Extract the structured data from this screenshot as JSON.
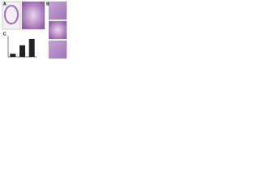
{
  "panels": [
    {
      "label": "A"
    },
    {
      "label": "B"
    },
    {
      "label": "C"
    }
  ],
  "chart_data": {
    "type": "bar",
    "categories": [
      null,
      null,
      null
    ],
    "values": [
      15,
      55,
      85
    ],
    "color": "#222222",
    "ylim": [
      0,
      100
    ]
  }
}
